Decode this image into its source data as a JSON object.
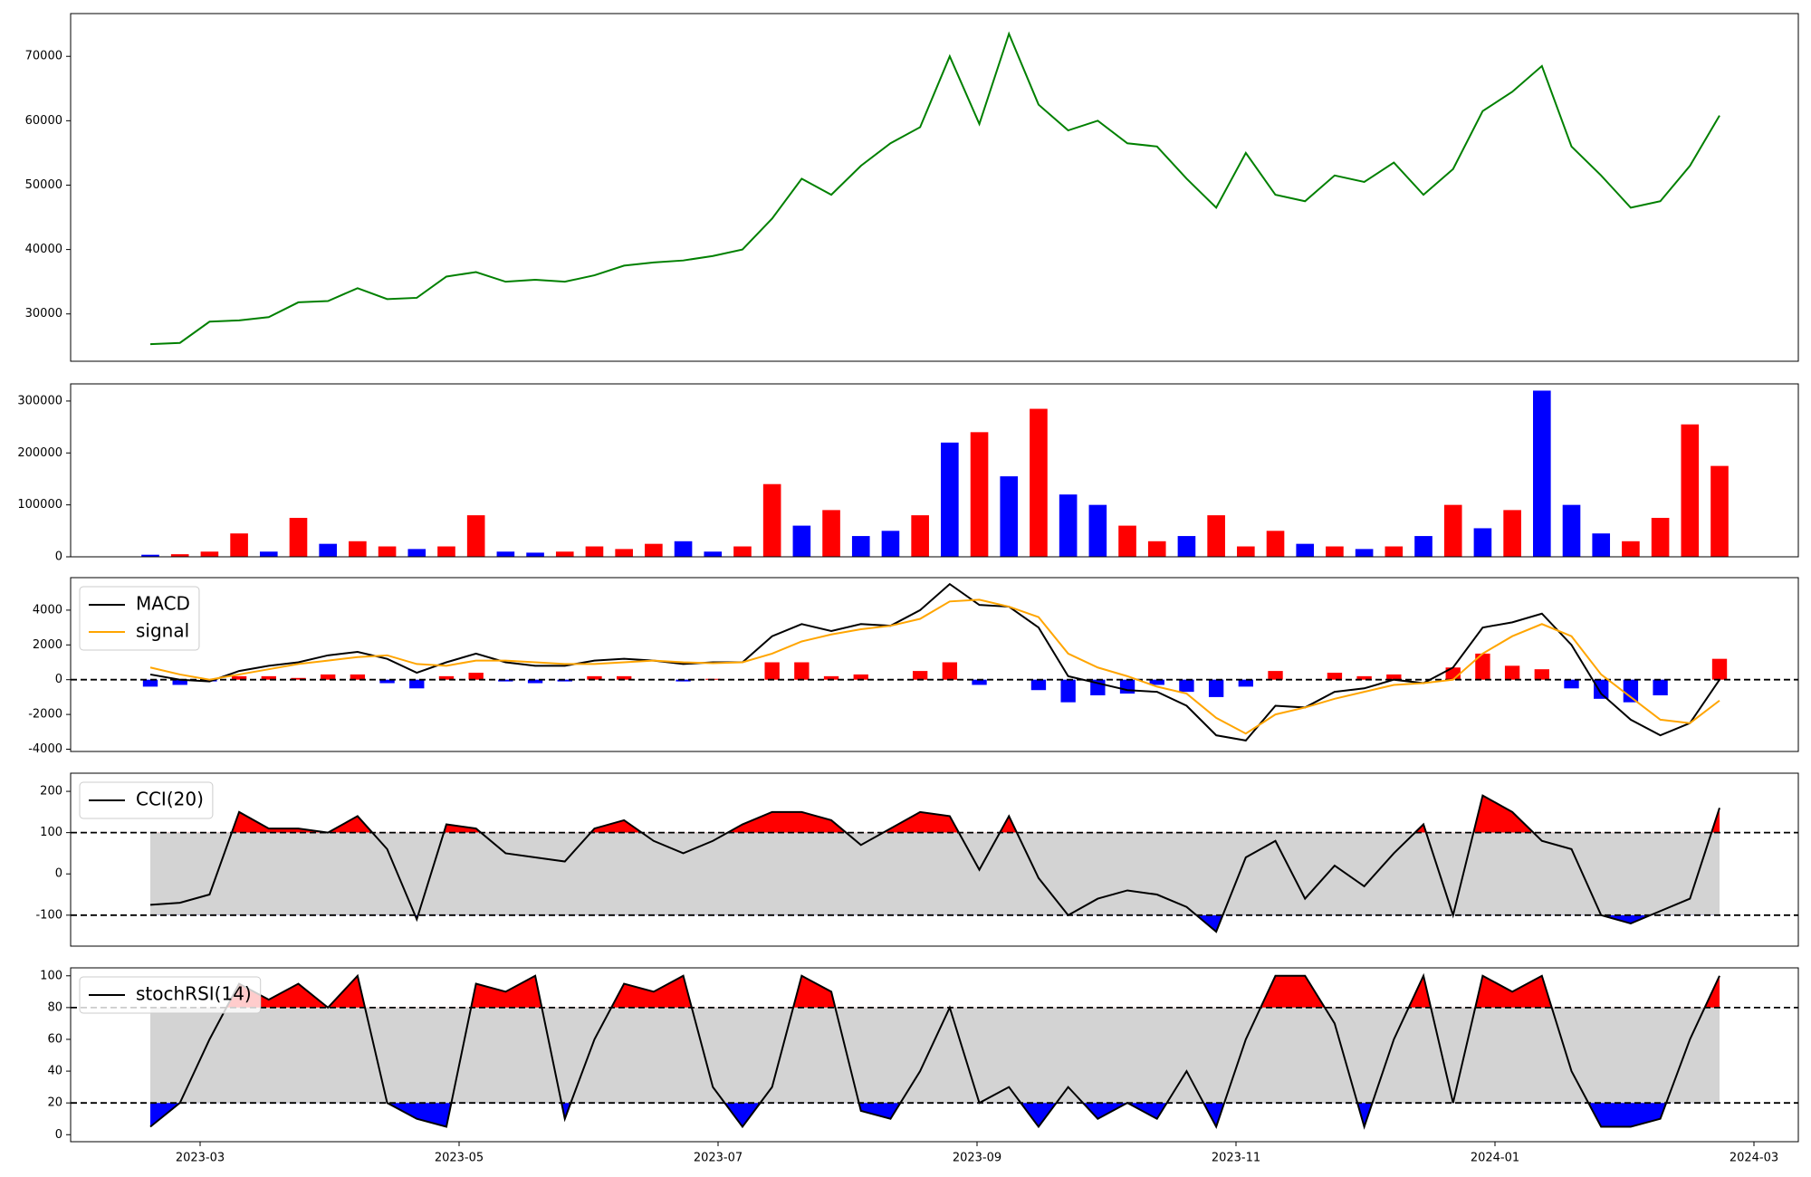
{
  "chart_data": [
    {
      "type": "line",
      "color": "#008000",
      "values": [
        25300,
        25500,
        28800,
        29000,
        29500,
        31800,
        32000,
        34000,
        32300,
        32500,
        35800,
        36500,
        35000,
        35300,
        35000,
        36000,
        37500,
        38000,
        38300,
        39000,
        40000,
        44800,
        51000,
        48500,
        53000,
        56500,
        59000,
        70000,
        59500,
        73500,
        62500,
        58500,
        60000,
        56500,
        56000,
        51000,
        46500,
        55000,
        48500,
        47500,
        51500,
        50500,
        53500,
        48500,
        52500,
        61500,
        64500,
        68500,
        56000,
        51500,
        46500,
        47500,
        53000,
        60800
      ],
      "ylim": [
        22650,
        76640
      ],
      "yticks": [
        30000,
        40000,
        50000,
        60000,
        70000
      ]
    },
    {
      "type": "bar",
      "values": [
        4000,
        5000,
        10000,
        45000,
        10000,
        75000,
        25000,
        30000,
        20000,
        15000,
        20000,
        80000,
        10000,
        8000,
        10000,
        20000,
        15000,
        25000,
        30000,
        10000,
        20000,
        140000,
        60000,
        90000,
        40000,
        50000,
        80000,
        220000,
        240000,
        155000,
        285000,
        120000,
        100000,
        60000,
        30000,
        40000,
        80000,
        20000,
        50000,
        25000,
        20000,
        15000,
        20000,
        40000,
        100000,
        55000,
        90000,
        320000,
        100000,
        45000,
        30000,
        75000,
        255000,
        175000
      ],
      "colors": [
        "blue",
        "red",
        "red",
        "red",
        "blue",
        "red",
        "blue",
        "red",
        "red",
        "blue",
        "red",
        "red",
        "blue",
        "blue",
        "red",
        "red",
        "red",
        "red",
        "blue",
        "blue",
        "red",
        "red",
        "blue",
        "red",
        "blue",
        "blue",
        "red",
        "blue",
        "red",
        "blue",
        "red",
        "blue",
        "blue",
        "red",
        "red",
        "blue",
        "red",
        "red",
        "red",
        "blue",
        "red",
        "blue",
        "red",
        "blue",
        "red",
        "blue",
        "red",
        "blue",
        "blue",
        "blue",
        "red",
        "red",
        "red",
        "red"
      ],
      "ylim": [
        0,
        333000
      ],
      "yticks": [
        0,
        100000,
        200000,
        300000
      ]
    },
    {
      "type": "macd",
      "legend": "upper left",
      "series": [
        {
          "name": "MACD",
          "color": "black",
          "values": [
            300,
            0,
            -100,
            500,
            800,
            1000,
            1400,
            1600,
            1200,
            400,
            1000,
            1500,
            1000,
            800,
            800,
            1100,
            1200,
            1100,
            900,
            1000,
            1000,
            2500,
            3200,
            2800,
            3200,
            3100,
            4000,
            5500,
            4300,
            4200,
            3000,
            200,
            -200,
            -600,
            -700,
            -1500,
            -3200,
            -3500,
            -1500,
            -1600,
            -700,
            -500,
            0,
            -200,
            700,
            3000,
            3300,
            3800,
            2000,
            -800,
            -2300,
            -3200,
            -2500,
            0
          ]
        },
        {
          "name": "signal",
          "color": "orange",
          "values": [
            700,
            300,
            0,
            300,
            600,
            900,
            1100,
            1300,
            1400,
            900,
            800,
            1100,
            1100,
            1000,
            900,
            900,
            1000,
            1100,
            1000,
            950,
            1000,
            1500,
            2200,
            2600,
            2900,
            3100,
            3500,
            4500,
            4600,
            4200,
            3600,
            1500,
            700,
            200,
            -400,
            -800,
            -2200,
            -3100,
            -2000,
            -1600,
            -1100,
            -700,
            -300,
            -200,
            0,
            1500,
            2500,
            3200,
            2500,
            300,
            -1000,
            -2300,
            -2500,
            -1200
          ]
        }
      ],
      "histogram": {
        "up_color": "red",
        "down_color": "blue",
        "values": [
          -400,
          -300,
          -100,
          200,
          200,
          100,
          300,
          300,
          -200,
          -500,
          200,
          400,
          -100,
          -200,
          -100,
          200,
          200,
          0,
          -100,
          50,
          0,
          1000,
          1000,
          200,
          300,
          0,
          500,
          1000,
          -300,
          0,
          -600,
          -1300,
          -900,
          -800,
          -300,
          -700,
          -1000,
          -400,
          500,
          0,
          400,
          200,
          300,
          0,
          700,
          1500,
          800,
          600,
          -500,
          -1100,
          -1300,
          -900,
          0,
          1200
        ]
      },
      "thresholds": [
        0
      ],
      "ylim": [
        -4130,
        5870
      ],
      "yticks": [
        -4000,
        -2000,
        0,
        2000,
        4000
      ]
    },
    {
      "type": "oscillator",
      "legend": "upper left",
      "series": [
        {
          "name": "CCI(20)",
          "color": "black",
          "values": [
            -75,
            -70,
            -50,
            150,
            110,
            110,
            100,
            140,
            60,
            -110,
            120,
            110,
            50,
            40,
            30,
            110,
            130,
            80,
            50,
            80,
            120,
            150,
            150,
            130,
            70,
            110,
            150,
            140,
            10,
            140,
            -10,
            -100,
            -60,
            -40,
            -50,
            -80,
            -140,
            40,
            80,
            -60,
            20,
            -30,
            50,
            120,
            -100,
            190,
            150,
            80,
            60,
            -100,
            -120,
            -90,
            -60,
            160
          ]
        }
      ],
      "thresholds": [
        -100,
        100
      ],
      "upper_fill": "red",
      "lower_fill": "blue",
      "band_fill": "lightgrey",
      "ylim": [
        -175,
        244
      ],
      "yticks": [
        -100,
        0,
        100,
        200
      ]
    },
    {
      "type": "oscillator",
      "legend": "upper left",
      "series": [
        {
          "name": "stochRSI(14)",
          "color": "black",
          "values": [
            5,
            20,
            60,
            95,
            85,
            95,
            80,
            100,
            20,
            10,
            5,
            95,
            90,
            100,
            10,
            60,
            95,
            90,
            100,
            30,
            5,
            30,
            100,
            90,
            15,
            10,
            40,
            80,
            20,
            30,
            5,
            30,
            10,
            20,
            10,
            40,
            5,
            60,
            100,
            100,
            70,
            5,
            60,
            100,
            20,
            100,
            90,
            100,
            40,
            5,
            5,
            10,
            60,
            100
          ]
        }
      ],
      "thresholds": [
        20,
        80
      ],
      "upper_fill": "red",
      "lower_fill": "blue",
      "band_fill": "lightgrey",
      "ylim": [
        -4.4,
        105
      ],
      "yticks": [
        0,
        20,
        40,
        60,
        80,
        100
      ],
      "xticks": [
        "2023-03",
        "2023-05",
        "2023-07",
        "2023-09",
        "2023-11",
        "2024-01",
        "2024-03"
      ]
    }
  ]
}
